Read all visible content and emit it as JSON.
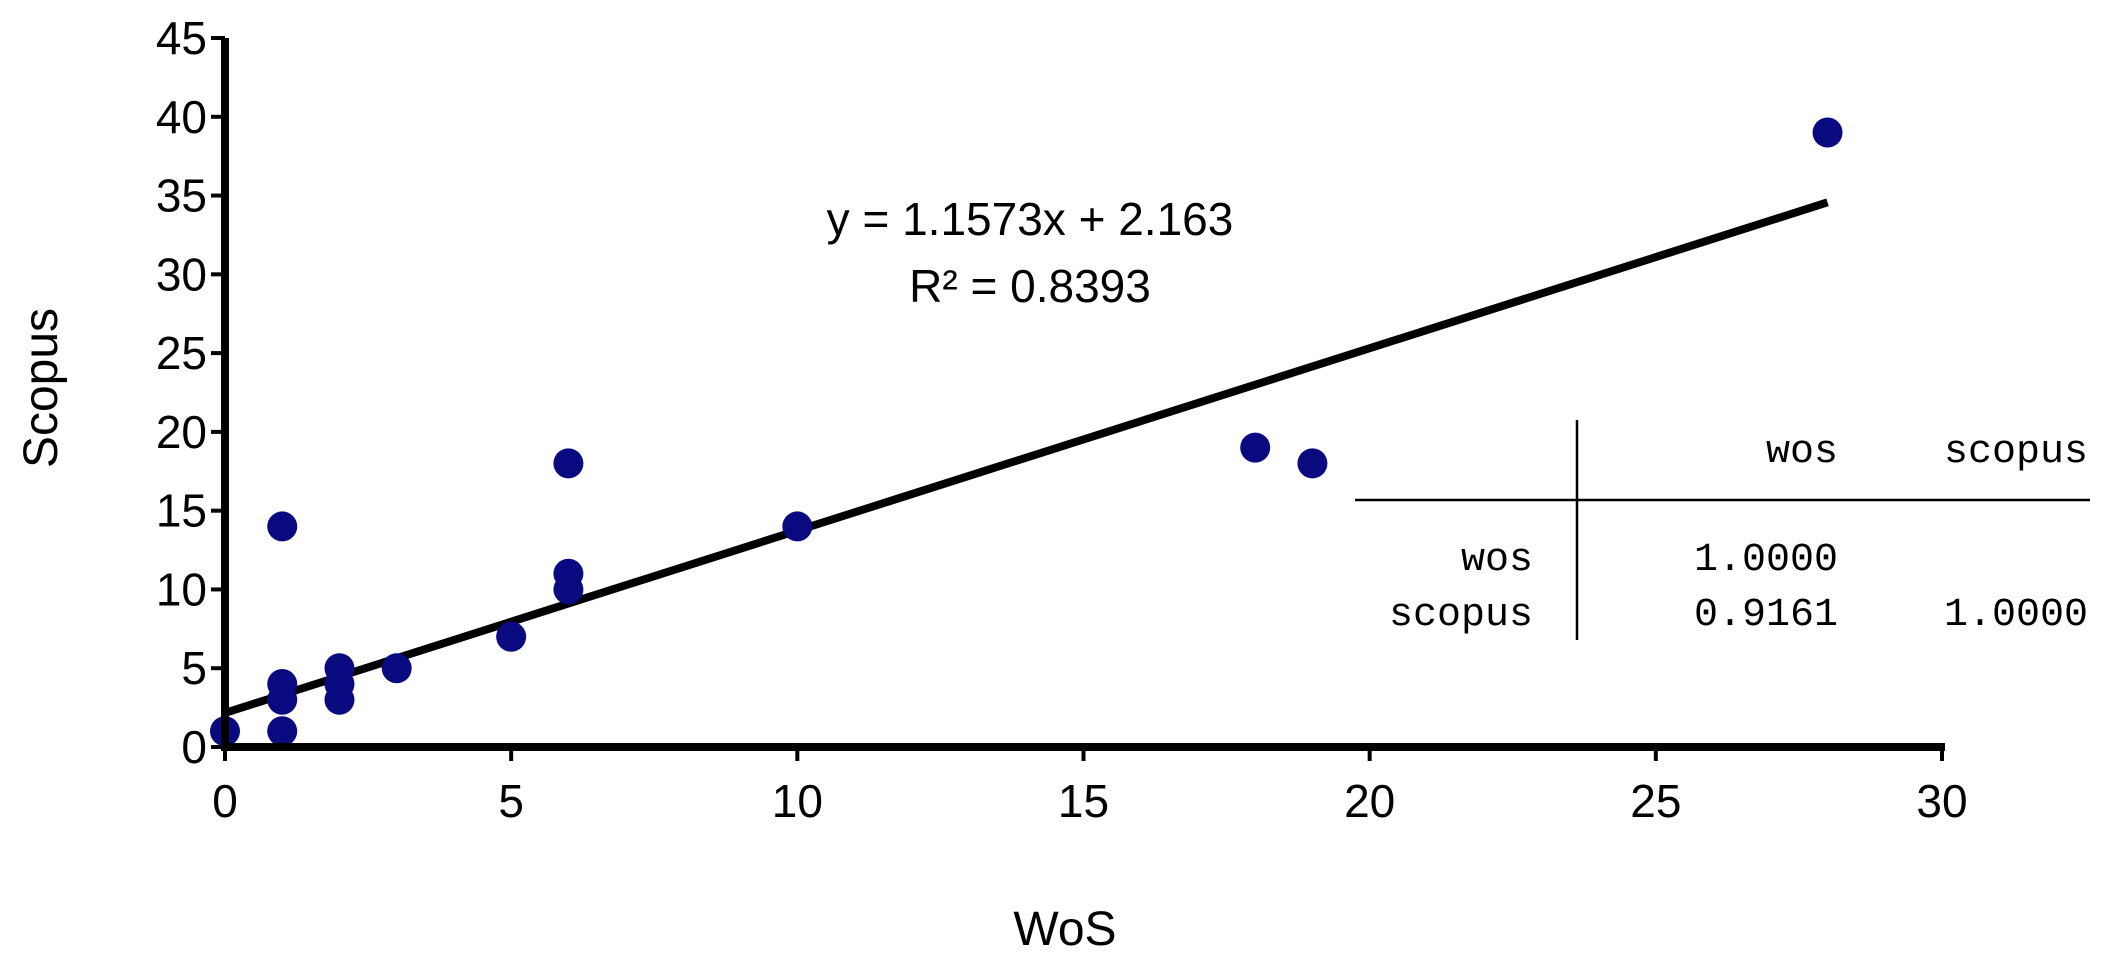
{
  "chart_data": {
    "type": "scatter",
    "title": "",
    "xlabel": "WoS",
    "ylabel": "Scopus",
    "xlim": [
      0,
      30
    ],
    "ylim": [
      0,
      45
    ],
    "x_ticks": [
      0,
      5,
      10,
      15,
      20,
      25,
      30
    ],
    "y_ticks": [
      0,
      5,
      10,
      15,
      20,
      25,
      30,
      35,
      40,
      45
    ],
    "grid": false,
    "legend": "none",
    "marker_color": "#0a0a80",
    "line_color": "#000000",
    "series": [
      {
        "points": [
          {
            "x": 0,
            "y": 1
          },
          {
            "x": 1,
            "y": 1
          },
          {
            "x": 1,
            "y": 3
          },
          {
            "x": 1,
            "y": 4
          },
          {
            "x": 1,
            "y": 14
          },
          {
            "x": 2,
            "y": 3
          },
          {
            "x": 2,
            "y": 4
          },
          {
            "x": 2,
            "y": 5
          },
          {
            "x": 3,
            "y": 5
          },
          {
            "x": 5,
            "y": 7
          },
          {
            "x": 6,
            "y": 10
          },
          {
            "x": 6,
            "y": 11
          },
          {
            "x": 6,
            "y": 18
          },
          {
            "x": 10,
            "y": 14
          },
          {
            "x": 18,
            "y": 19
          },
          {
            "x": 19,
            "y": 18
          },
          {
            "x": 28,
            "y": 39
          }
        ]
      }
    ],
    "trendline": {
      "slope": 1.1573,
      "intercept": 2.163,
      "x_range": [
        0,
        28
      ],
      "equation_label": "y = 1.1573x + 2.163",
      "r2_label": "R² = 0.8393"
    },
    "correlation_table": {
      "col_headers": [
        "wos",
        "scopus"
      ],
      "rows": [
        {
          "label": "wos",
          "values": [
            "1.0000",
            ""
          ]
        },
        {
          "label": "scopus",
          "values": [
            "0.9161",
            "1.0000"
          ]
        }
      ]
    }
  }
}
